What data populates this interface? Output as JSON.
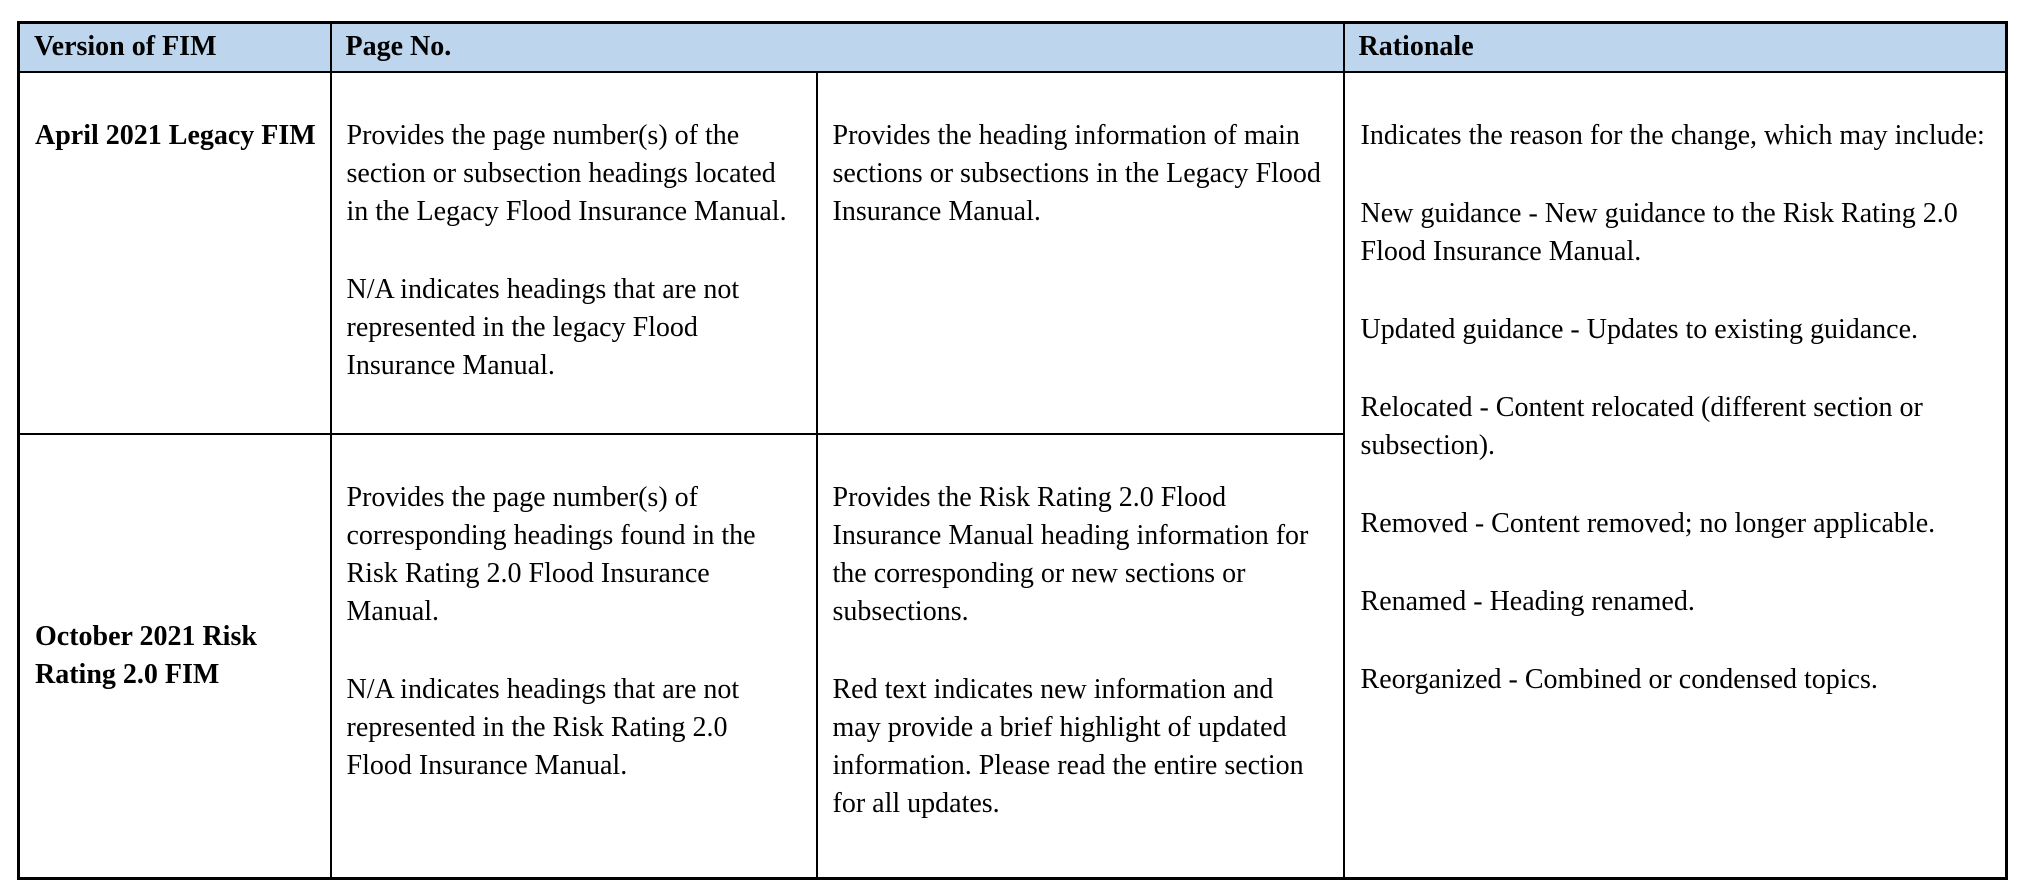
{
  "table": {
    "header": {
      "version": "Version of FIM",
      "page_no": "Page No.",
      "rationale": "Rationale"
    },
    "rows": [
      {
        "version": "April 2021 Legacy FIM",
        "pages": [
          "Provides the page number(s) of the section or subsection headings located in the Legacy Flood Insurance Manual.",
          "N/A indicates headings that are not represented in the legacy Flood Insurance Manual."
        ],
        "headings": [
          "Provides the heading information of main sections or subsections in the Legacy Flood Insurance Manual."
        ]
      },
      {
        "version": "October 2021 Risk Rating 2.0 FIM",
        "pages": [
          "Provides the page number(s) of corresponding headings found in the Risk Rating 2.0 Flood Insurance Manual.",
          "N/A indicates headings that are not represented in the Risk Rating 2.0 Flood Insurance Manual."
        ],
        "headings": [
          "Provides the Risk Rating 2.0 Flood Insurance Manual heading information for the corresponding or new sections or subsections.",
          "Red text indicates new information and may provide a brief highlight of updated information. Please read the entire section for all updates."
        ]
      }
    ],
    "rationale_paragraphs": [
      "Indicates the reason for the change, which may include:",
      "New guidance - New guidance to the Risk Rating 2.0 Flood Insurance Manual.",
      "Updated guidance - Updates to existing guidance.",
      "Relocated - Content relocated (different section or subsection).",
      "Removed - Content removed; no longer applicable.",
      "Renamed - Heading renamed.",
      "Reorganized - Combined or condensed topics."
    ]
  },
  "colors": {
    "header_bg": "#bdd6ee",
    "border": "#000000",
    "text": "#000000",
    "page_bg": "#ffffff"
  }
}
